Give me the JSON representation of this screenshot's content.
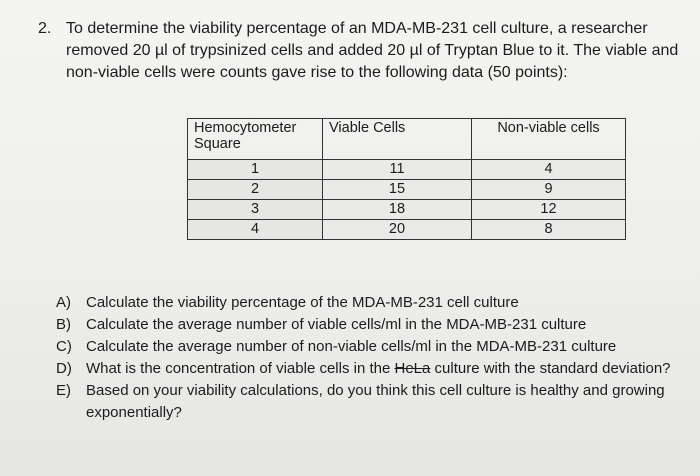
{
  "question": {
    "number": "2.",
    "text": "To determine the viability percentage of an MDA-MB-231 cell culture, a researcher removed 20 µl of trypsinized cells and added 20 µl of Tryptan Blue to it. The viable and non-viable cells were counts gave rise to the following data (50 points):"
  },
  "table": {
    "headers": [
      "Hemocytometer Square",
      "Viable Cells",
      "Non-viable cells"
    ],
    "rows": [
      [
        "1",
        "11",
        "4"
      ],
      [
        "2",
        "15",
        "9"
      ],
      [
        "3",
        "18",
        "12"
      ],
      [
        "4",
        "20",
        "8"
      ]
    ]
  },
  "parts": [
    {
      "letter": "A)",
      "text": "Calculate the viability percentage of the MDA-MB-231 cell culture"
    },
    {
      "letter": "B)",
      "text": "Calculate the average number of viable cells/ml in the MDA-MB-231 culture"
    },
    {
      "letter": "C)",
      "text": "Calculate the average number of non-viable cells/ml in the MDA-MB-231 culture"
    },
    {
      "letter": "D)",
      "text_before": "What is the concentration of viable cells in the ",
      "struck": "HeLa",
      "text_after": " culture with the standard deviation?"
    },
    {
      "letter": "E)",
      "text": "Based on your viability calculations, do you think this cell culture is healthy and growing exponentially?"
    }
  ]
}
